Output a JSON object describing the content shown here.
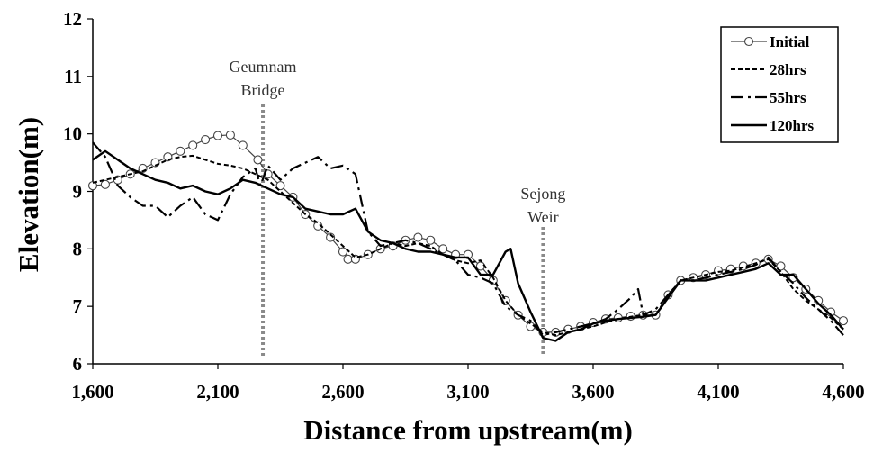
{
  "chart_data": {
    "type": "line",
    "xlabel": "Distance from upstream(m)",
    "ylabel": "Elevation(m)",
    "xlim": [
      1600,
      4600
    ],
    "ylim": [
      6,
      12
    ],
    "xticks": [
      1600,
      2100,
      2600,
      3100,
      3600,
      4100,
      4600
    ],
    "xtick_labels": [
      "1,600",
      "2,100",
      "2,600",
      "3,100",
      "3,600",
      "4,100",
      "4,600"
    ],
    "yticks": [
      6,
      7,
      8,
      9,
      10,
      11,
      12
    ],
    "ytick_labels": [
      "6",
      "7",
      "8",
      "9",
      "10",
      "11",
      "12"
    ],
    "grid": false,
    "legend_position": "top-right",
    "annotations": [
      {
        "lines": [
          "Geumnam",
          "Bridge"
        ],
        "x": 2280
      },
      {
        "lines": [
          "Sejong",
          "Weir"
        ],
        "x": 3400
      }
    ],
    "series": [
      {
        "name": "Initial",
        "style": "solid-circle",
        "x": [
          1600,
          1650,
          1700,
          1750,
          1800,
          1850,
          1900,
          1950,
          2000,
          2050,
          2100,
          2150,
          2200,
          2260,
          2300,
          2350,
          2400,
          2450,
          2500,
          2550,
          2600,
          2620,
          2650,
          2700,
          2750,
          2800,
          2850,
          2900,
          2950,
          3000,
          3050,
          3100,
          3150,
          3200,
          3250,
          3300,
          3350,
          3400,
          3450,
          3500,
          3550,
          3600,
          3650,
          3700,
          3750,
          3800,
          3850,
          3900,
          3950,
          4000,
          4050,
          4100,
          4150,
          4200,
          4250,
          4300,
          4350,
          4400,
          4450,
          4500,
          4550,
          4600
        ],
        "y": [
          9.1,
          9.12,
          9.2,
          9.3,
          9.4,
          9.5,
          9.6,
          9.7,
          9.8,
          9.9,
          9.97,
          9.98,
          9.8,
          9.55,
          9.3,
          9.1,
          8.9,
          8.6,
          8.4,
          8.2,
          7.95,
          7.82,
          7.82,
          7.9,
          8.0,
          8.05,
          8.15,
          8.2,
          8.15,
          8.0,
          7.9,
          7.9,
          7.7,
          7.45,
          7.1,
          6.85,
          6.65,
          6.55,
          6.55,
          6.6,
          6.65,
          6.72,
          6.78,
          6.8,
          6.83,
          6.85,
          6.85,
          7.2,
          7.45,
          7.5,
          7.55,
          7.62,
          7.65,
          7.7,
          7.75,
          7.82,
          7.7,
          7.5,
          7.3,
          7.1,
          6.9,
          6.75
        ],
        "markers": true
      },
      {
        "name": "28hrs",
        "style": "dashed",
        "x": [
          1600,
          1650,
          1700,
          1750,
          1800,
          1850,
          1900,
          1950,
          2000,
          2050,
          2100,
          2150,
          2200,
          2250,
          2300,
          2350,
          2400,
          2450,
          2500,
          2550,
          2600,
          2650,
          2700,
          2750,
          2800,
          2850,
          2900,
          2950,
          3000,
          3050,
          3100,
          3150,
          3200,
          3250,
          3300,
          3350,
          3400,
          3450,
          3500,
          3550,
          3600,
          3650,
          3700,
          3750,
          3800,
          3850,
          3900,
          3950,
          4000,
          4050,
          4100,
          4150,
          4200,
          4250,
          4300,
          4350,
          4400,
          4450,
          4500,
          4550,
          4600
        ],
        "y": [
          9.15,
          9.2,
          9.25,
          9.3,
          9.35,
          9.45,
          9.55,
          9.6,
          9.62,
          9.55,
          9.48,
          9.45,
          9.4,
          9.3,
          9.2,
          9.0,
          8.8,
          8.6,
          8.45,
          8.25,
          8.05,
          7.85,
          7.9,
          8.0,
          8.1,
          8.05,
          8.1,
          8.05,
          7.9,
          7.8,
          7.75,
          7.8,
          7.5,
          7.1,
          6.85,
          6.7,
          6.55,
          6.5,
          6.55,
          6.6,
          6.65,
          6.72,
          6.78,
          6.82,
          6.85,
          6.85,
          7.2,
          7.45,
          7.5,
          7.55,
          7.6,
          7.62,
          7.68,
          7.75,
          7.82,
          7.6,
          7.3,
          7.1,
          6.95,
          6.8,
          6.6
        ],
        "markers": false
      },
      {
        "name": "55hrs",
        "style": "dash-dot",
        "x": [
          1600,
          1650,
          1700,
          1750,
          1800,
          1850,
          1900,
          1950,
          2000,
          2050,
          2100,
          2150,
          2200,
          2250,
          2270,
          2300,
          2350,
          2400,
          2450,
          2500,
          2550,
          2600,
          2650,
          2700,
          2750,
          2800,
          2850,
          2900,
          2950,
          3000,
          3050,
          3100,
          3150,
          3200,
          3250,
          3300,
          3350,
          3400,
          3450,
          3500,
          3550,
          3600,
          3650,
          3700,
          3750,
          3780,
          3800,
          3850,
          3900,
          3950,
          4000,
          4050,
          4100,
          4150,
          4200,
          4250,
          4300,
          4350,
          4400,
          4450,
          4500,
          4550,
          4600
        ],
        "y": [
          9.85,
          9.6,
          9.1,
          8.9,
          8.75,
          8.75,
          8.55,
          8.75,
          8.9,
          8.6,
          8.5,
          8.95,
          9.25,
          9.4,
          9.1,
          9.45,
          9.2,
          9.4,
          9.5,
          9.6,
          9.4,
          9.45,
          9.3,
          8.3,
          8.05,
          8.1,
          8.15,
          8.1,
          8.0,
          7.9,
          7.8,
          7.55,
          7.5,
          7.4,
          7.0,
          6.85,
          6.75,
          6.5,
          6.55,
          6.6,
          6.65,
          6.7,
          6.78,
          6.95,
          7.15,
          7.3,
          6.85,
          6.95,
          7.2,
          7.45,
          7.45,
          7.5,
          7.55,
          7.6,
          7.65,
          7.72,
          7.85,
          7.6,
          7.4,
          7.15,
          6.95,
          6.75,
          6.5
        ],
        "markers": false
      },
      {
        "name": "120hrs",
        "style": "solid",
        "x": [
          1600,
          1650,
          1700,
          1750,
          1800,
          1850,
          1900,
          1950,
          2000,
          2050,
          2100,
          2150,
          2200,
          2250,
          2300,
          2350,
          2400,
          2450,
          2500,
          2550,
          2600,
          2650,
          2700,
          2750,
          2800,
          2850,
          2900,
          2950,
          3000,
          3050,
          3100,
          3150,
          3200,
          3250,
          3270,
          3300,
          3350,
          3400,
          3450,
          3500,
          3550,
          3600,
          3650,
          3700,
          3750,
          3800,
          3850,
          3900,
          3950,
          4000,
          4050,
          4100,
          4150,
          4200,
          4250,
          4300,
          4350,
          4400,
          4450,
          4500,
          4550,
          4600
        ],
        "y": [
          9.55,
          9.7,
          9.55,
          9.4,
          9.3,
          9.2,
          9.15,
          9.05,
          9.1,
          9.0,
          8.95,
          9.05,
          9.2,
          9.15,
          9.05,
          8.95,
          8.9,
          8.7,
          8.65,
          8.6,
          8.6,
          8.7,
          8.3,
          8.15,
          8.1,
          8.0,
          7.95,
          7.95,
          7.9,
          7.85,
          7.85,
          7.55,
          7.55,
          7.95,
          8.0,
          7.4,
          6.9,
          6.45,
          6.4,
          6.55,
          6.6,
          6.7,
          6.75,
          6.78,
          6.8,
          6.82,
          6.85,
          7.15,
          7.45,
          7.45,
          7.45,
          7.5,
          7.55,
          7.6,
          7.65,
          7.75,
          7.55,
          7.55,
          7.3,
          7.05,
          6.85,
          6.6
        ],
        "markers": false
      }
    ]
  }
}
